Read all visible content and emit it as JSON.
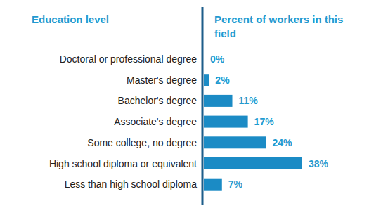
{
  "chart_data": {
    "type": "bar",
    "orientation": "horizontal",
    "y_label": "Education level",
    "x_label": "Percent of workers in this field",
    "categories": [
      "Doctoral or professional degree",
      "Master's degree",
      "Bachelor's degree",
      "Associate's degree",
      "Some college, no degree",
      "High school diploma or equivalent",
      "Less than high school diploma"
    ],
    "values": [
      0,
      2,
      11,
      17,
      24,
      38,
      7
    ],
    "value_labels": [
      "0%",
      "2%",
      "11%",
      "17%",
      "24%",
      "38%",
      "7%"
    ],
    "data_labels": true,
    "tick_labels": "y",
    "color": "#1b8bc5",
    "xlim": [
      0,
      60
    ]
  }
}
